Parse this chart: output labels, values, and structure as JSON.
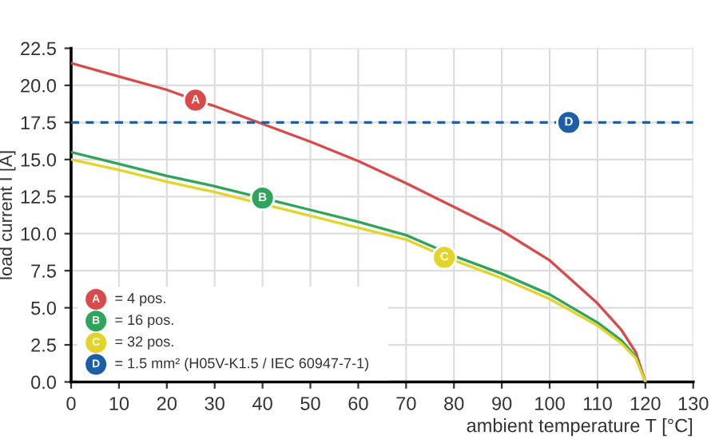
{
  "chart_data": {
    "type": "line",
    "xlabel": "ambient temperature T [°C]",
    "ylabel": "load current I [A]",
    "xlim": [
      0,
      130
    ],
    "xticks": [
      0,
      10,
      20,
      30,
      40,
      50,
      60,
      70,
      80,
      90,
      100,
      110,
      120,
      130
    ],
    "ylim": [
      0,
      22.5
    ],
    "yticks": [
      {
        "value": 0,
        "label": "0.0"
      },
      {
        "value": 2.5,
        "label": "2.5"
      },
      {
        "value": 5,
        "label": "5.0"
      },
      {
        "value": 7.5,
        "label": "7.5"
      },
      {
        "value": 10,
        "label": "10.0"
      },
      {
        "value": 12.5,
        "label": "12.5"
      },
      {
        "value": 15,
        "label": "15.0"
      },
      {
        "value": 17.5,
        "label": "17.5"
      },
      {
        "value": 20,
        "label": "20.0"
      },
      {
        "value": 22.5,
        "label": "22.5"
      }
    ],
    "grid": true,
    "legend": "bottom left",
    "series": [
      {
        "name": "= 4 pos.",
        "color": "#d94a4a",
        "x": [
          0,
          10,
          20,
          26,
          30,
          40,
          50,
          60,
          70,
          80,
          90,
          100,
          110,
          115,
          118,
          120
        ],
        "values": [
          21.5,
          20.6,
          19.7,
          19.0,
          18.6,
          17.4,
          16.2,
          14.9,
          13.4,
          11.8,
          10.2,
          8.2,
          5.3,
          3.5,
          2.0,
          0
        ]
      },
      {
        "name": "= 16 pos.",
        "color": "#2ea55a",
        "x": [
          0,
          10,
          20,
          30,
          40,
          50,
          60,
          70,
          80,
          90,
          100,
          110,
          115,
          118,
          120
        ],
        "values": [
          15.5,
          14.7,
          13.9,
          13.2,
          12.4,
          11.6,
          10.8,
          9.9,
          8.5,
          7.3,
          5.9,
          4.0,
          2.8,
          1.7,
          0
        ]
      },
      {
        "name": "= 32 pos.",
        "color": "#e2d428",
        "x": [
          0,
          10,
          20,
          30,
          50,
          60,
          70,
          80,
          90,
          100,
          110,
          115,
          118,
          120
        ],
        "values": [
          15.0,
          14.3,
          13.5,
          12.8,
          11.2,
          10.4,
          9.6,
          8.2,
          7.0,
          5.6,
          3.8,
          2.6,
          1.6,
          0
        ]
      },
      {
        "name": "= 1.5 mm² (H05V-K1.5 / IEC 60947-7-1)",
        "color": "#1c5ea8",
        "line_style": "dashed",
        "x": [
          0,
          130
        ],
        "values": [
          17.5,
          17.5
        ]
      }
    ],
    "annotations": [
      {
        "text": "A",
        "x": 26,
        "y": 19.0
      },
      {
        "text": "B",
        "x": 40,
        "y": 12.4
      },
      {
        "text": "C",
        "x": 78,
        "y": 8.4
      },
      {
        "text": "D",
        "x": 104,
        "y": 17.5
      }
    ]
  }
}
